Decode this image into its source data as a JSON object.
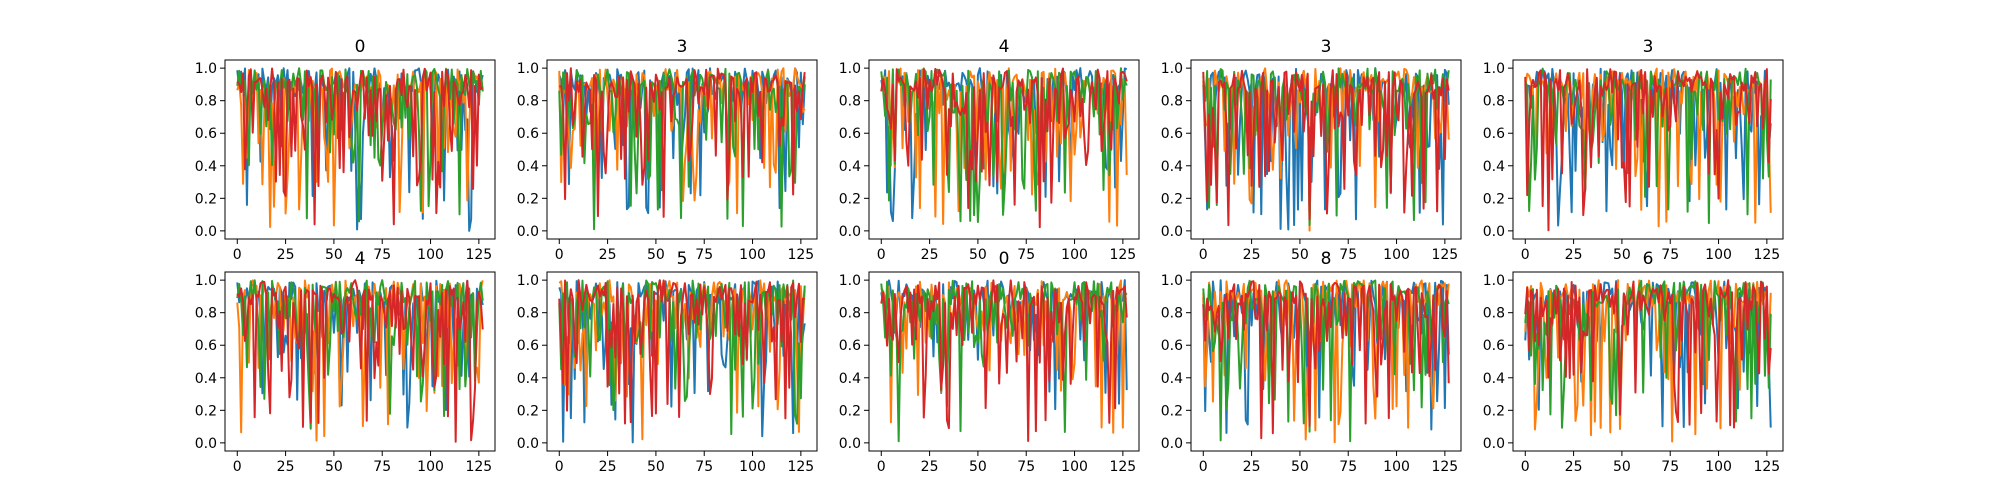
{
  "chart_data": {
    "type": "line",
    "layout_grid": "2x5",
    "colors": [
      "#1f77b4",
      "#ff7f0e",
      "#2ca02c",
      "#d62728"
    ],
    "x_ticks": [
      0,
      25,
      50,
      75,
      100,
      125
    ],
    "y_ticks": [
      0.0,
      0.2,
      0.4,
      0.6,
      0.8,
      1.0
    ],
    "x_tick_labels": [
      "0",
      "25",
      "50",
      "75",
      "100",
      "125"
    ],
    "y_tick_labels": [
      "0.0",
      "0.2",
      "0.4",
      "0.6",
      "0.8",
      "1.0"
    ],
    "xlim": [
      -6.35,
      133.35
    ],
    "ylim": [
      -0.05,
      1.05
    ],
    "grid": false,
    "legend": "none",
    "points_per_series": 128,
    "series_per_panel": 4,
    "panels": [
      {
        "title": "0"
      },
      {
        "title": "3"
      },
      {
        "title": "4"
      },
      {
        "title": "3"
      },
      {
        "title": "3"
      },
      {
        "title": "4"
      },
      {
        "title": "5"
      },
      {
        "title": "0"
      },
      {
        "title": "8"
      },
      {
        "title": "6"
      }
    ]
  }
}
